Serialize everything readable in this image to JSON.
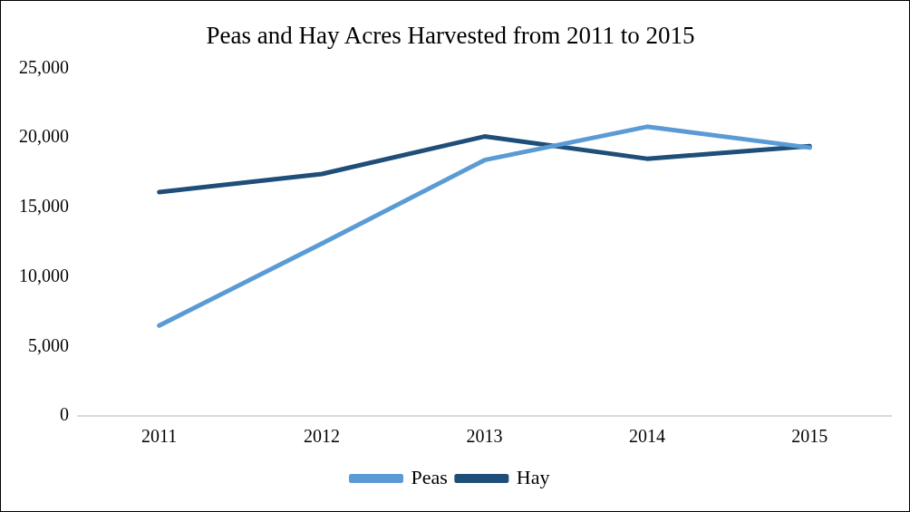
{
  "chart_data": {
    "type": "line",
    "title": "Peas and Hay Acres Harvested from 2011 to 2015",
    "categories": [
      "2011",
      "2012",
      "2013",
      "2014",
      "2015"
    ],
    "series": [
      {
        "name": "Peas",
        "color": "#5b9bd5",
        "values": [
          6500,
          12400,
          18400,
          20800,
          19300
        ]
      },
      {
        "name": "Hay",
        "color": "#1f4e79",
        "values": [
          16100,
          17400,
          20100,
          18500,
          19400
        ]
      }
    ],
    "ylim": [
      0,
      25000
    ],
    "yticks": [
      {
        "value": 0,
        "label": "0"
      },
      {
        "value": 5000,
        "label": "5,000"
      },
      {
        "value": 10000,
        "label": "10,000"
      },
      {
        "value": 15000,
        "label": "15,000"
      },
      {
        "value": 20000,
        "label": "20,000"
      },
      {
        "value": 25000,
        "label": "25,000"
      }
    ],
    "grid": false,
    "legend": "bottom",
    "marker": "none",
    "line_style": "solid"
  }
}
